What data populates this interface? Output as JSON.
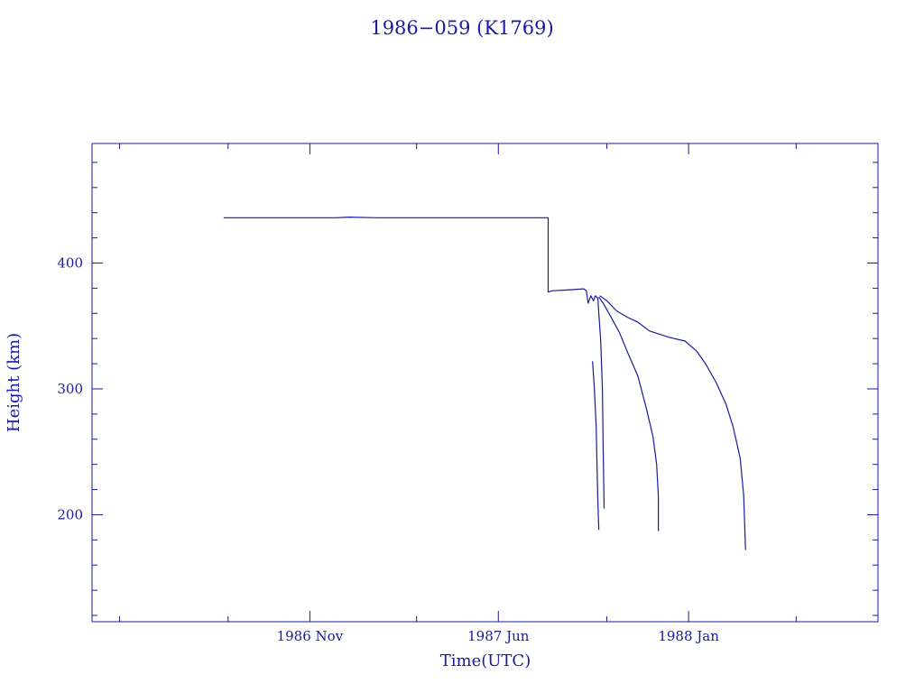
{
  "chart_data": {
    "type": "line",
    "title": "1986−059 (K1769)",
    "xlabel": "Time(UTC)",
    "ylabel": "Height (km)",
    "x_tick_labels": [
      "1986 Nov",
      "1987 Jun",
      "1988 Jan"
    ],
    "x_ticks": [
      "1986-11-01",
      "1987-06-01",
      "1988-01-01"
    ],
    "xlim": [
      "1986-03-01",
      "1988-08-01"
    ],
    "y_ticks": [
      200,
      300,
      400
    ],
    "y_tick_labels": [
      "200",
      "300",
      "400"
    ],
    "ylim": [
      115,
      495
    ],
    "grid": false,
    "color": "#1a1a9e",
    "series": [
      {
        "points": [
          [
            "1986-07-27",
            436
          ],
          [
            "1986-12-01",
            436
          ],
          [
            "1986-12-15",
            436.5
          ],
          [
            "1987-01-15",
            436
          ],
          [
            "1987-04-01",
            436
          ],
          [
            "1987-07-27",
            436
          ],
          [
            "1987-07-27",
            377
          ],
          [
            "1987-08-01",
            378
          ],
          [
            "1987-08-15",
            378.5
          ],
          [
            "1987-09-05",
            379.5
          ],
          [
            "1987-09-08",
            378
          ],
          [
            "1987-09-10",
            368
          ],
          [
            "1987-09-13",
            374
          ],
          [
            "1987-09-16",
            370
          ],
          [
            "1987-09-18",
            374
          ],
          [
            "1987-09-21",
            372
          ],
          [
            "1987-09-22",
            360
          ],
          [
            "1987-09-24",
            340
          ],
          [
            "1987-09-26",
            300
          ],
          [
            "1987-09-27",
            250
          ],
          [
            "1987-09-28",
            205
          ]
        ]
      },
      {
        "points": [
          [
            "1987-09-15",
            322
          ],
          [
            "1987-09-17",
            300
          ],
          [
            "1987-09-19",
            270
          ],
          [
            "1987-09-20",
            240
          ],
          [
            "1987-09-21",
            210
          ],
          [
            "1987-09-22",
            188
          ]
        ]
      },
      {
        "points": [
          [
            "1987-09-22",
            373
          ],
          [
            "1987-09-27",
            368
          ],
          [
            "1987-10-05",
            358
          ],
          [
            "1987-10-15",
            345
          ],
          [
            "1987-10-25",
            328
          ],
          [
            "1987-11-05",
            310
          ],
          [
            "1987-11-15",
            283
          ],
          [
            "1987-11-22",
            262
          ],
          [
            "1987-11-26",
            240
          ],
          [
            "1987-11-28",
            215
          ],
          [
            "1987-11-28",
            187
          ]
        ]
      },
      {
        "points": [
          [
            "1987-09-23",
            374
          ],
          [
            "1987-10-01",
            370
          ],
          [
            "1987-10-12",
            362
          ],
          [
            "1987-10-24",
            357
          ],
          [
            "1987-11-05",
            353
          ],
          [
            "1987-11-18",
            346
          ],
          [
            "1987-12-10",
            341
          ],
          [
            "1987-12-28",
            338
          ],
          [
            "1988-01-10",
            330
          ],
          [
            "1988-01-20",
            320
          ],
          [
            "1988-02-01",
            305
          ],
          [
            "1988-02-12",
            288
          ],
          [
            "1988-02-20",
            270
          ],
          [
            "1988-02-28",
            245
          ],
          [
            "1988-03-03",
            215
          ],
          [
            "1988-03-05",
            172
          ]
        ]
      }
    ]
  }
}
